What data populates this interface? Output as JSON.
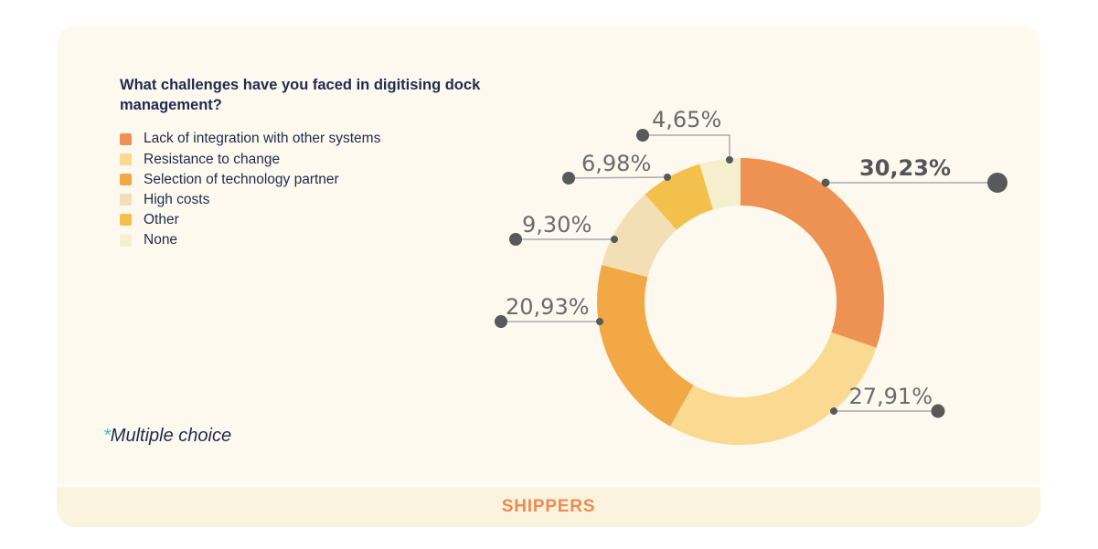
{
  "header": {
    "title": "What challenges have you faced in digitising dock management?"
  },
  "legend": {
    "items": [
      {
        "label": "Lack of integration with other systems",
        "color": "#EE9254"
      },
      {
        "label": "Resistance to change",
        "color": "#F9DA90"
      },
      {
        "label": "Selection of technology partner",
        "color": "#F3A846"
      },
      {
        "label": "High costs",
        "color": "#F2DFB6"
      },
      {
        "label": "Other",
        "color": "#F3C14B"
      },
      {
        "label": "None",
        "color": "#F6EFCD"
      }
    ]
  },
  "footnote": {
    "asterisk": "*",
    "text": "Multiple choice",
    "asterisk_color": "#35C4B5"
  },
  "footer": {
    "label": "SHIPPERS",
    "color": "#EF8A50"
  },
  "chart_data": {
    "type": "pie",
    "subtype": "donut",
    "title": "What challenges have you faced in digitising dock management?",
    "categories": [
      "Lack of integration with other systems",
      "Resistance to change",
      "Selection of technology partner",
      "High costs",
      "Other",
      "None"
    ],
    "values": [
      30.23,
      27.91,
      20.93,
      9.3,
      6.98,
      4.65
    ],
    "display_values": [
      "30,23%",
      "27,91%",
      "20,93%",
      "9,30%",
      "6,98%",
      "4,65%"
    ],
    "colors": [
      "#EE9254",
      "#F9DA90",
      "#F3A846",
      "#F2DFB6",
      "#F3C14B",
      "#F6EFCD"
    ],
    "start_angle_deg": 0,
    "direction": "clockwise",
    "legend_position": "left",
    "note": "Multiple choice",
    "group_label": "SHIPPERS",
    "leader_line_color": "#ACABA7",
    "dot_color": "#58595B",
    "background_color": "#FDF9EE"
  }
}
